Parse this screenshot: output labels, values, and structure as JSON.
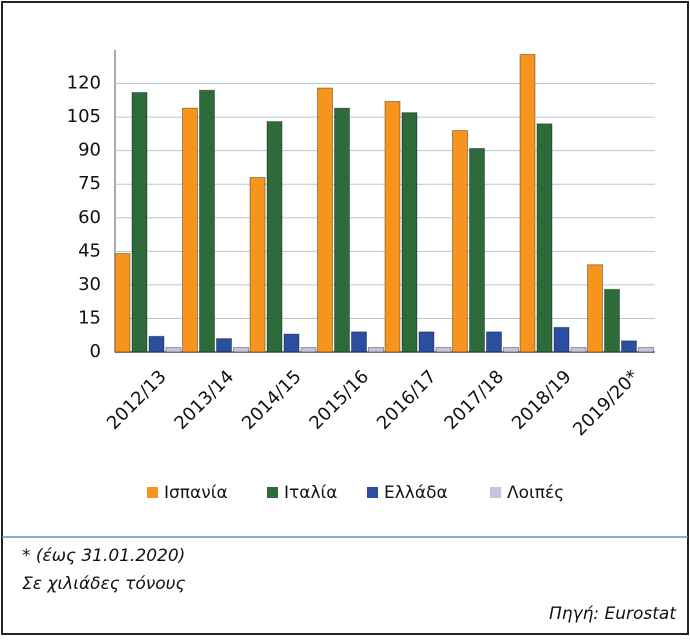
{
  "chart_data": {
    "type": "bar",
    "categories": [
      "2012/13",
      "2013/14",
      "2014/15",
      "2015/16",
      "2016/17",
      "2017/18",
      "2018/19",
      "2019/20*"
    ],
    "series": [
      {
        "name": "Ισπανία",
        "color": "#f7941d",
        "values": [
          44,
          109,
          78,
          118,
          112,
          99,
          133,
          39
        ]
      },
      {
        "name": "Ιταλία",
        "color": "#2e6b3a",
        "values": [
          116,
          117,
          103,
          109,
          107,
          91,
          102,
          28
        ]
      },
      {
        "name": "Ελλάδα",
        "color": "#2a4f9e",
        "values": [
          7,
          6,
          8,
          9,
          9,
          9,
          11,
          5
        ]
      },
      {
        "name": "Λοιπές",
        "color": "#c4c4dc",
        "values": [
          2,
          2,
          2,
          2,
          2,
          2,
          2,
          2
        ]
      }
    ],
    "ylim": [
      0,
      135
    ],
    "yticks": [
      0,
      15,
      30,
      45,
      60,
      75,
      90,
      105,
      120
    ],
    "grid": true,
    "legend": "bottom",
    "notes": [
      "* (έως 31.01.2020)",
      "Σε χιλιάδες τόνους"
    ],
    "source": "Πηγή: Eurostat"
  }
}
